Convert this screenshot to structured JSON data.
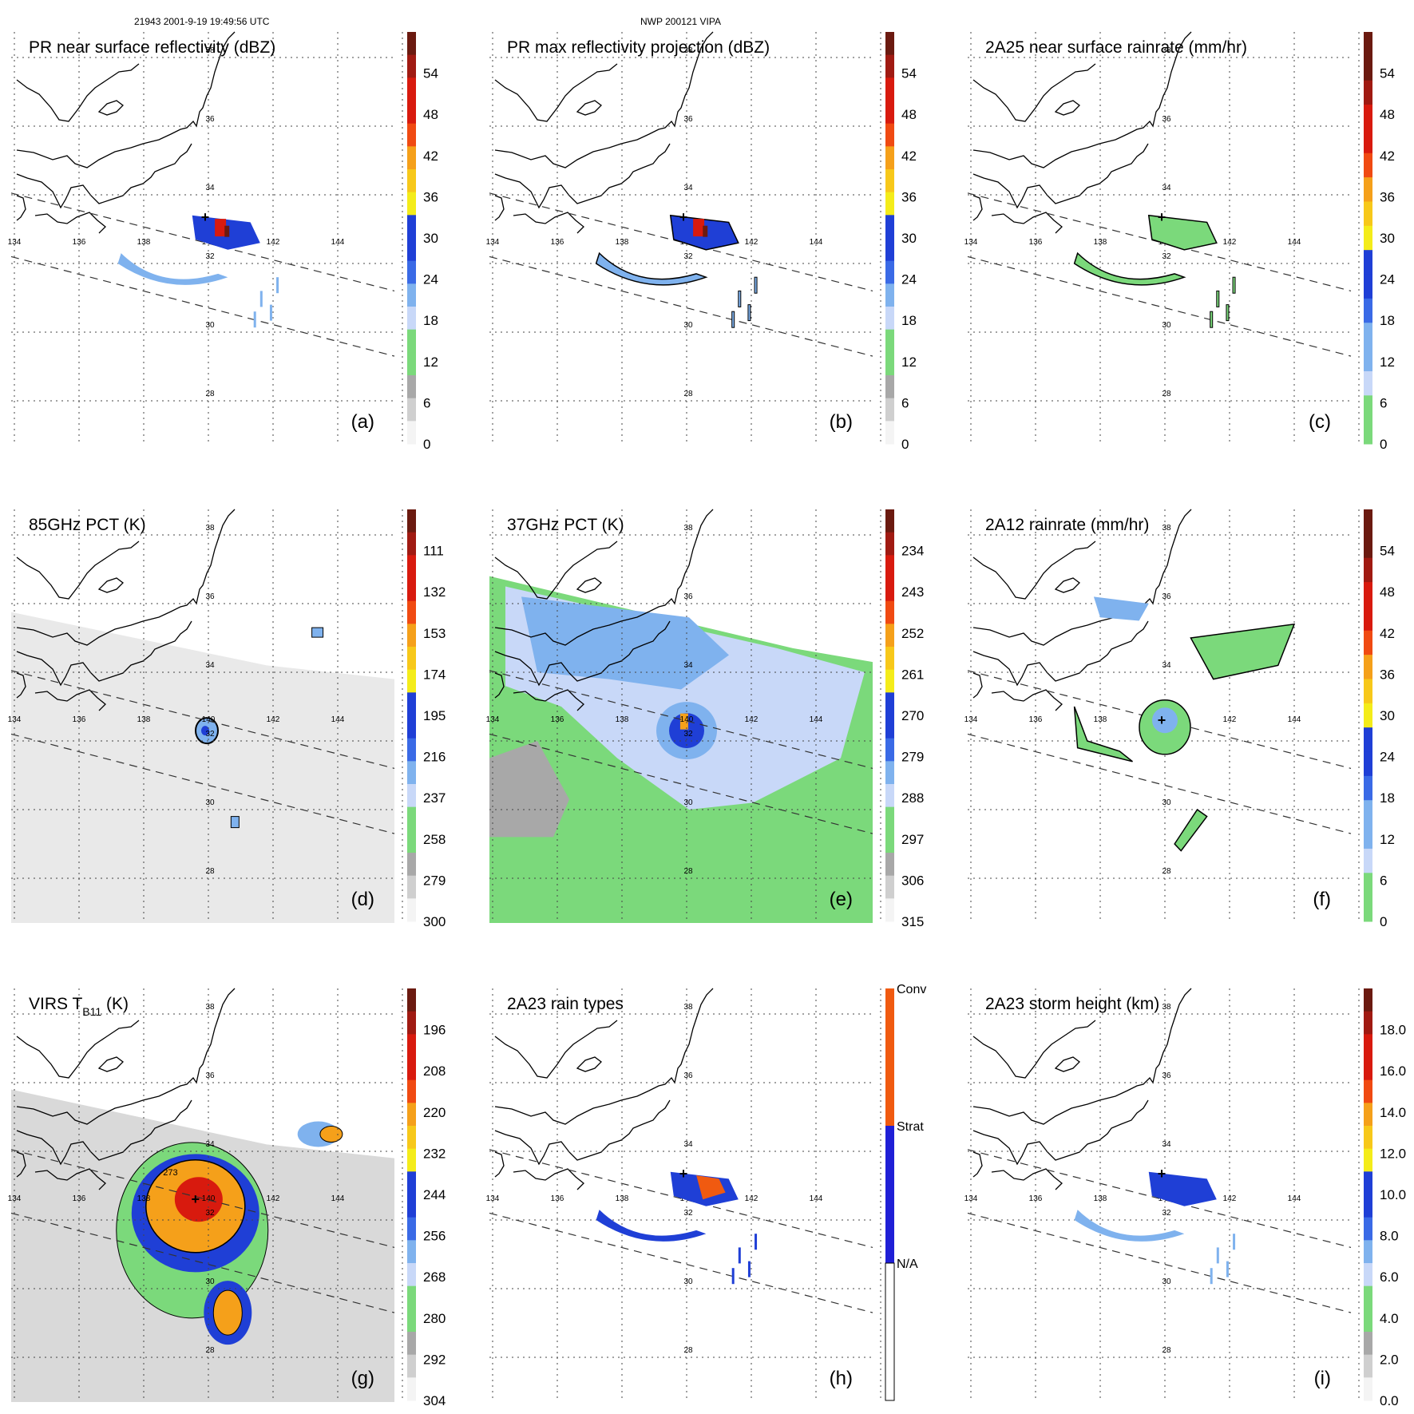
{
  "header": {
    "left": "21943 2001-9-19 19:49:56 UTC",
    "center": "NWP 200121 VIPA"
  },
  "axis_labels": {
    "lon": [
      "134",
      "136",
      "138",
      "140",
      "142",
      "144"
    ],
    "lat": [
      "38",
      "36",
      "34",
      "32",
      "30",
      "28"
    ]
  },
  "panels": [
    {
      "id": "a",
      "title": "PR near surface reflectivity (dBZ)",
      "letter": "(a)",
      "background": "none",
      "colorbar": {
        "labels": [
          "54",
          "48",
          "42",
          "36",
          "30",
          "24",
          "18",
          "12",
          "6",
          "0"
        ],
        "bands": "dbz"
      }
    },
    {
      "id": "b",
      "title": "PR max reflectivity projection (dBZ)",
      "letter": "(b)",
      "background": "none",
      "colorbar": {
        "labels": [
          "54",
          "48",
          "42",
          "36",
          "30",
          "24",
          "18",
          "12",
          "6",
          "0"
        ],
        "bands": "dbz"
      }
    },
    {
      "id": "c",
      "title": "2A25 near surface rainrate (mm/hr)",
      "letter": "(c)",
      "background": "none",
      "colorbar": {
        "labels": [
          "54",
          "48",
          "42",
          "36",
          "30",
          "24",
          "18",
          "12",
          "6",
          "0"
        ],
        "bands": "rain"
      }
    },
    {
      "id": "d",
      "title": "85GHz PCT (K)",
      "letter": "(d)",
      "background": "light-gray-swath",
      "colorbar": {
        "labels": [
          "111",
          "132",
          "153",
          "174",
          "195",
          "216",
          "237",
          "258",
          "279",
          "300"
        ],
        "bands": "dbz"
      }
    },
    {
      "id": "e",
      "title": "37GHz PCT (K)",
      "letter": "(e)",
      "background": "blue-green-swath",
      "colorbar": {
        "labels": [
          "234",
          "243",
          "252",
          "261",
          "270",
          "279",
          "288",
          "297",
          "306",
          "315"
        ],
        "bands": "dbz"
      }
    },
    {
      "id": "f",
      "title": "2A12 rainrate (mm/hr)",
      "letter": "(f)",
      "background": "none",
      "colorbar": {
        "labels": [
          "54",
          "48",
          "42",
          "36",
          "30",
          "24",
          "18",
          "12",
          "6",
          "0"
        ],
        "bands": "rain"
      }
    },
    {
      "id": "g",
      "title": "VIRS T",
      "title_sub": "B11",
      "title_after": " (K)",
      "letter": "(g)",
      "background": "ir-swath",
      "colorbar": {
        "labels": [
          "196",
          "208",
          "220",
          "232",
          "244",
          "256",
          "268",
          "280",
          "292",
          "304"
        ],
        "bands": "dbz"
      }
    },
    {
      "id": "h",
      "title": "2A23 rain types",
      "letter": "(h)",
      "background": "none",
      "colorbar": {
        "labels": [
          "Conv",
          "Strat",
          "N/A"
        ],
        "bands": "types"
      }
    },
    {
      "id": "i",
      "title": "2A23 storm height (km)",
      "letter": "(i)",
      "background": "none",
      "colorbar": {
        "labels": [
          "18.0",
          "16.0",
          "14.0",
          "12.0",
          "10.0",
          "8.0",
          "6.0",
          "4.0",
          "2.0",
          "0.0"
        ],
        "bands": "dbz"
      }
    }
  ],
  "contour_label": "273",
  "colors": {
    "green": "#7bd97b",
    "lightblue": "#7fb2ee",
    "blue": "#1f3fd6",
    "yellow": "#f4ec1a",
    "orange": "#f5a01a",
    "red": "#d81a0e",
    "darkred": "#6b1a10",
    "gray": "#a8a8a8",
    "lightgray": "#e8e8e8"
  }
}
